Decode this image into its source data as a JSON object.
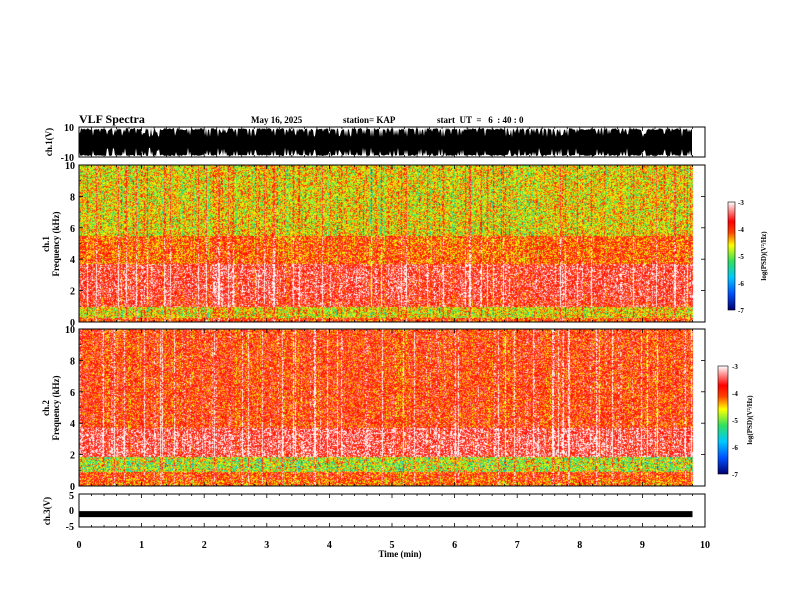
{
  "header": {
    "title": "VLF Spectra",
    "date": "May 16, 2025",
    "station": "station= KAP",
    "start_ut": "start  UT  =   6  : 40 : 0"
  },
  "chart_data": [
    {
      "type": "line",
      "panel": "ch1-waveform",
      "ylabel": "ch.1(V)",
      "ytick_labels": [
        "10",
        "-10"
      ],
      "ylim": [
        -10,
        10
      ],
      "xlim": [
        0,
        10
      ],
      "data_extent_min": [
        0,
        9.8
      ],
      "style": "dense black waveform saturating near ±10 V"
    },
    {
      "type": "heatmap",
      "panel": "ch1-spectrogram",
      "ylabel": "ch.1 Frequency (kHz)",
      "ytick_labels": [
        "0",
        "2",
        "4",
        "6",
        "8",
        "10"
      ],
      "ylim": [
        0,
        10
      ],
      "xlim": [
        0,
        10
      ],
      "bands": [
        {
          "fmin": 0,
          "fmax": 0.3,
          "level": -4.0
        },
        {
          "fmin": 0.3,
          "fmax": 1.0,
          "level": -4.6
        },
        {
          "fmin": 1.0,
          "fmax": 1.6,
          "level": -3.7
        },
        {
          "fmin": 1.6,
          "fmax": 3.7,
          "level": -3.6
        },
        {
          "fmin": 3.7,
          "fmax": 5.5,
          "level": -4.1
        },
        {
          "fmin": 5.5,
          "fmax": 10,
          "level": -4.6
        }
      ],
      "colorbar": {
        "label": "log(PSD)(V²/Hz)",
        "tick_labels": [
          "-3",
          "-4",
          "-5",
          "-6",
          "-7"
        ],
        "range": [
          -7,
          -3
        ]
      }
    },
    {
      "type": "heatmap",
      "panel": "ch2-spectrogram",
      "ylabel": "ch.2 Frequency (kHz)",
      "ytick_labels": [
        "0",
        "2",
        "4",
        "6",
        "8",
        "10"
      ],
      "ylim": [
        0,
        10
      ],
      "xlim": [
        0,
        10
      ],
      "bands": [
        {
          "fmin": 0,
          "fmax": 0.4,
          "level": -4.2
        },
        {
          "fmin": 0.4,
          "fmax": 0.9,
          "level": -4.0
        },
        {
          "fmin": 0.9,
          "fmax": 1.9,
          "level": -4.9
        },
        {
          "fmin": 1.9,
          "fmax": 3.7,
          "level": -3.5
        },
        {
          "fmin": 3.7,
          "fmax": 10,
          "level": -3.9
        }
      ],
      "colorbar": {
        "label": "log(PSD)(V²/Hz)",
        "tick_labels": [
          "-3",
          "-4",
          "-5",
          "-6",
          "-7"
        ],
        "range": [
          -7,
          -3
        ]
      }
    },
    {
      "type": "line",
      "panel": "ch3-waveform",
      "ylabel": "ch.3(V)",
      "ytick_labels": [
        "5",
        "0",
        "-5"
      ],
      "ylim": [
        -5,
        5
      ],
      "xlim": [
        0,
        10
      ],
      "data_extent_min": [
        0,
        9.8
      ],
      "level_volts": -1.1,
      "style": "thick nearly constant black trace"
    }
  ],
  "x_axis": {
    "label": "Time  (min)",
    "tick_labels": [
      "0",
      "1",
      "2",
      "3",
      "4",
      "5",
      "6",
      "7",
      "8",
      "9",
      "10"
    ],
    "range": [
      0,
      10
    ]
  },
  "colors": {
    "background": "#ffffff",
    "axis": "#000000",
    "colormap": [
      "#000070",
      "#0050ff",
      "#00c8ff",
      "#30e060",
      "#ffff00",
      "#ff4000",
      "#ff0000",
      "#ffffff"
    ]
  }
}
